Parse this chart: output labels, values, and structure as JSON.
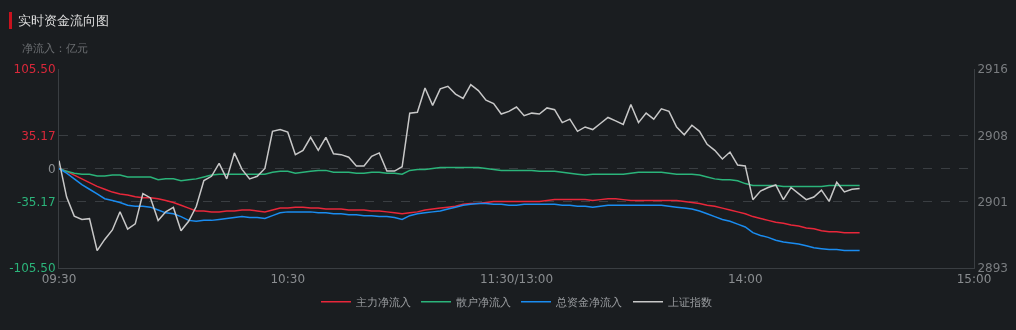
{
  "chart_data": {
    "type": "line",
    "title": "实时资金流向图",
    "ylabel": "净流入：亿元",
    "categories": [
      "09:30",
      null,
      null,
      null,
      null,
      null,
      null,
      null,
      null,
      null,
      null,
      null,
      null,
      null,
      null,
      null,
      null,
      null,
      null,
      null,
      null,
      null,
      null,
      null,
      null,
      null,
      null,
      null,
      null,
      null,
      "10:30",
      null,
      null,
      null,
      null,
      null,
      null,
      null,
      null,
      null,
      null,
      null,
      null,
      null,
      null,
      null,
      null,
      null,
      null,
      null,
      null,
      null,
      null,
      null,
      null,
      null,
      null,
      null,
      null,
      null,
      "11:30/13:00",
      null,
      null,
      null,
      null,
      null,
      null,
      null,
      null,
      null,
      null,
      null,
      null,
      null,
      null,
      null,
      null,
      null,
      null,
      null,
      null,
      null,
      null,
      null,
      null,
      null,
      null,
      null,
      null,
      null,
      "14:00",
      null,
      null,
      null,
      null,
      null,
      null,
      null,
      null,
      null,
      null,
      null,
      null,
      null,
      null,
      null,
      null,
      null,
      null,
      null,
      null,
      null,
      null,
      null,
      null,
      null,
      null,
      null,
      null,
      null,
      "15:00"
    ],
    "ylim": [
      -105.5,
      105.5
    ],
    "yticks": [
      {
        "value": -105.5,
        "label": "-105.50"
      },
      -35.17,
      0,
      35.17,
      {
        "value": 105.5,
        "label": "105.50"
      }
    ],
    "y2lim": [
      2893,
      2916
    ],
    "y2ticks": [
      2893,
      {
        "value": 2900.67,
        "label": "2901"
      },
      {
        "value": 2908.33,
        "label": "2908"
      },
      2916
    ],
    "grid": "y",
    "legend": "bottom",
    "series": [
      {
        "name": "主力净流入",
        "color": "#e8273a",
        "values": [
          0,
          -3,
          -7,
          -11,
          -15,
          -19,
          -22,
          -25,
          -27,
          -28,
          -30,
          -31,
          -31,
          -32,
          -34,
          -36,
          -39,
          -42,
          -45,
          -45,
          -46,
          -46,
          -45,
          -45,
          -44,
          -44,
          -45,
          -46,
          -44,
          -42,
          -42,
          -41,
          -41,
          -42,
          -42,
          -43,
          -43,
          -43,
          -44,
          -44,
          -44,
          -45,
          -45,
          -46,
          -47,
          -48,
          -47,
          -46,
          -44,
          -43,
          -42,
          -41,
          -40,
          -38,
          -37,
          -37,
          -36,
          -35,
          -35,
          -35,
          -35,
          -35,
          -35,
          -35,
          -34,
          -33,
          -33,
          -33,
          -33,
          -33,
          -34,
          -33,
          -32,
          -32,
          -33,
          -34,
          -34,
          -34,
          -34,
          -34,
          -34,
          -34,
          -35,
          -36,
          -37,
          -39,
          -40,
          -42,
          -44,
          -46,
          -48,
          -51,
          -53,
          -55,
          -57,
          -58,
          -60,
          -61,
          -63,
          -64,
          -66,
          -67,
          -67,
          -68,
          -68,
          -68,
          null,
          null,
          null,
          null,
          null,
          null,
          null,
          null,
          null,
          null,
          null,
          null,
          null,
          null,
          null
        ]
      },
      {
        "name": "散户净流入",
        "color": "#2bb47a",
        "values": [
          0,
          -3,
          -5,
          -6,
          -6,
          -8,
          -8,
          -7,
          -7,
          -9,
          -9,
          -9,
          -9,
          -12,
          -11,
          -11,
          -13,
          -12,
          -11,
          -9,
          -7,
          -6,
          -6,
          -6,
          -6,
          -6,
          -6,
          -6,
          -4,
          -3,
          -3,
          -5,
          -4,
          -3,
          -2,
          -2,
          -4,
          -4,
          -4,
          -5,
          -5,
          -4,
          -4,
          -5,
          -5,
          -6,
          -2,
          -1,
          -1,
          0,
          1,
          1,
          1,
          1,
          1,
          1,
          0,
          -1,
          -2,
          -2,
          -2,
          -2,
          -2,
          -3,
          -3,
          -3,
          -4,
          -5,
          -6,
          -7,
          -6,
          -6,
          -6,
          -6,
          -6,
          -5,
          -4,
          -4,
          -4,
          -4,
          -5,
          -6,
          -6,
          -6,
          -7,
          -9,
          -11,
          -12,
          -12,
          -13,
          -16,
          -18,
          -18,
          -18,
          -18,
          -19,
          -19,
          -19,
          -19,
          -19,
          -19,
          -18,
          -18,
          -18,
          -18,
          -18,
          null,
          null,
          null,
          null,
          null,
          null,
          null,
          null,
          null,
          null,
          null,
          null,
          null,
          null,
          null
        ]
      },
      {
        "name": "总资金净流入",
        "color": "#1a8cf0",
        "values": [
          0,
          -5,
          -11,
          -17,
          -22,
          -27,
          -32,
          -34,
          -36,
          -39,
          -40,
          -40,
          -41,
          -44,
          -47,
          -48,
          -51,
          -55,
          -56,
          -55,
          -55,
          -54,
          -53,
          -52,
          -51,
          -52,
          -52,
          -53,
          -50,
          -47,
          -46,
          -46,
          -46,
          -46,
          -47,
          -47,
          -48,
          -48,
          -49,
          -49,
          -50,
          -50,
          -51,
          -51,
          -52,
          -54,
          -50,
          -48,
          -47,
          -46,
          -45,
          -43,
          -41,
          -39,
          -38,
          -37,
          -37,
          -38,
          -38,
          -39,
          -39,
          -38,
          -38,
          -38,
          -38,
          -38,
          -39,
          -39,
          -40,
          -40,
          -41,
          -40,
          -39,
          -39,
          -39,
          -39,
          -39,
          -39,
          -39,
          -39,
          -40,
          -41,
          -42,
          -43,
          -45,
          -48,
          -51,
          -54,
          -56,
          -59,
          -62,
          -68,
          -71,
          -73,
          -76,
          -78,
          -79,
          -80,
          -82,
          -84,
          -85,
          -86,
          -86,
          -87,
          -87,
          -87,
          null,
          null,
          null,
          null,
          null,
          null,
          null,
          null,
          null,
          null,
          null,
          null,
          null,
          null,
          null
        ]
      },
      {
        "name": "上证指数",
        "color": "#c8c8c8",
        "axis": "y2",
        "values": [
          2905.4,
          2901.2,
          2899.0,
          2898.6,
          2898.7,
          2895.0,
          2896.3,
          2897.4,
          2899.5,
          2897.5,
          2898.1,
          2901.6,
          2901.1,
          2898.5,
          2899.5,
          2900.0,
          2897.3,
          2898.4,
          2900.1,
          2903.1,
          2903.6,
          2905.1,
          2903.3,
          2906.3,
          2904.4,
          2903.3,
          2903.6,
          2904.5,
          2908.8,
          2909.0,
          2908.7,
          2906.1,
          2906.6,
          2908.1,
          2906.6,
          2908.1,
          2906.2,
          2906.1,
          2905.8,
          2904.8,
          2904.8,
          2905.9,
          2906.3,
          2904.2,
          2904.2,
          2904.7,
          2910.9,
          2911.0,
          2913.8,
          2911.8,
          2913.7,
          2914.0,
          2913.1,
          2912.6,
          2914.2,
          2913.5,
          2912.4,
          2912.0,
          2910.8,
          2911.1,
          2911.6,
          2910.6,
          2910.9,
          2910.8,
          2911.5,
          2911.3,
          2909.8,
          2910.2,
          2908.8,
          2909.3,
          2909.0,
          2909.7,
          2910.4,
          2910.0,
          2909.6,
          2911.9,
          2909.8,
          2910.9,
          2910.2,
          2911.4,
          2911.1,
          2909.3,
          2908.4,
          2909.5,
          2908.8,
          2907.3,
          2906.6,
          2905.6,
          2906.4,
          2904.9,
          2904.8,
          2900.9,
          2901.9,
          2902.3,
          2902.6,
          2900.9,
          2902.3,
          2901.6,
          2900.9,
          2901.2,
          2902.0,
          2900.7,
          2902.9,
          2901.8,
          2902.1,
          2902.2,
          null,
          null,
          null,
          null,
          null,
          null,
          null,
          null,
          null,
          null,
          null,
          null,
          null,
          null,
          null
        ]
      }
    ]
  }
}
